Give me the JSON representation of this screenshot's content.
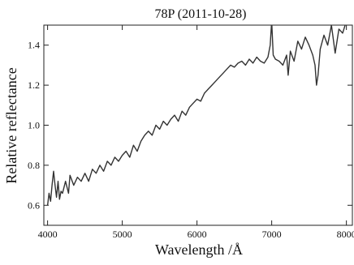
{
  "chart_data": {
    "type": "line",
    "title": "78P (2011-10-28)",
    "xlabel": "Wavelength /Å",
    "ylabel": "Relative reflectance",
    "xlim": [
      3950,
      8080
    ],
    "ylim": [
      0.5,
      1.5
    ],
    "xticks": [
      4000,
      5000,
      6000,
      7000,
      8000
    ],
    "yticks": [
      0.6,
      0.8,
      1.0,
      1.2,
      1.4
    ],
    "xtick_labels": [
      "4000",
      "5000",
      "6000",
      "7000",
      "8000"
    ],
    "ytick_labels": [
      "0.6",
      "0.8",
      "1.0",
      "1.2",
      "1.4"
    ],
    "grid": false,
    "legend": "none",
    "line_color": "#333333",
    "series": [
      {
        "x": [
          4000,
          4020,
          4040,
          4060,
          4080,
          4100,
          4120,
          4140,
          4160,
          4180,
          4200,
          4240,
          4280,
          4300,
          4350,
          4400,
          4450,
          4500,
          4550,
          4600,
          4650,
          4700,
          4750,
          4800,
          4850,
          4900,
          4950,
          5000,
          5050,
          5100,
          5150,
          5200,
          5250,
          5300,
          5350,
          5400,
          5450,
          5500,
          5550,
          5600,
          5650,
          5700,
          5750,
          5800,
          5850,
          5900,
          5950,
          6000,
          6050,
          6100,
          6150,
          6200,
          6250,
          6300,
          6350,
          6400,
          6450,
          6500,
          6550,
          6600,
          6650,
          6700,
          6750,
          6800,
          6850,
          6900,
          6950,
          6980,
          7000,
          7020,
          7050,
          7100,
          7150,
          7200,
          7220,
          7250,
          7300,
          7350,
          7400,
          7450,
          7500,
          7550,
          7580,
          7600,
          7620,
          7650,
          7700,
          7750,
          7800,
          7850,
          7900,
          7950,
          8000,
          8050
        ],
        "y": [
          0.6,
          0.66,
          0.62,
          0.7,
          0.77,
          0.7,
          0.64,
          0.72,
          0.63,
          0.67,
          0.66,
          0.72,
          0.66,
          0.75,
          0.7,
          0.74,
          0.72,
          0.76,
          0.72,
          0.78,
          0.76,
          0.8,
          0.77,
          0.82,
          0.8,
          0.84,
          0.82,
          0.85,
          0.87,
          0.84,
          0.9,
          0.87,
          0.92,
          0.95,
          0.97,
          0.95,
          1.0,
          0.98,
          1.02,
          1.0,
          1.03,
          1.05,
          1.02,
          1.07,
          1.05,
          1.09,
          1.11,
          1.13,
          1.12,
          1.16,
          1.18,
          1.2,
          1.22,
          1.24,
          1.26,
          1.28,
          1.3,
          1.29,
          1.31,
          1.32,
          1.3,
          1.33,
          1.31,
          1.34,
          1.32,
          1.31,
          1.34,
          1.4,
          1.52,
          1.35,
          1.33,
          1.32,
          1.3,
          1.35,
          1.25,
          1.37,
          1.32,
          1.42,
          1.38,
          1.44,
          1.4,
          1.35,
          1.3,
          1.2,
          1.25,
          1.38,
          1.45,
          1.4,
          1.5,
          1.36,
          1.48,
          1.46,
          1.52,
          1.5
        ]
      }
    ]
  }
}
